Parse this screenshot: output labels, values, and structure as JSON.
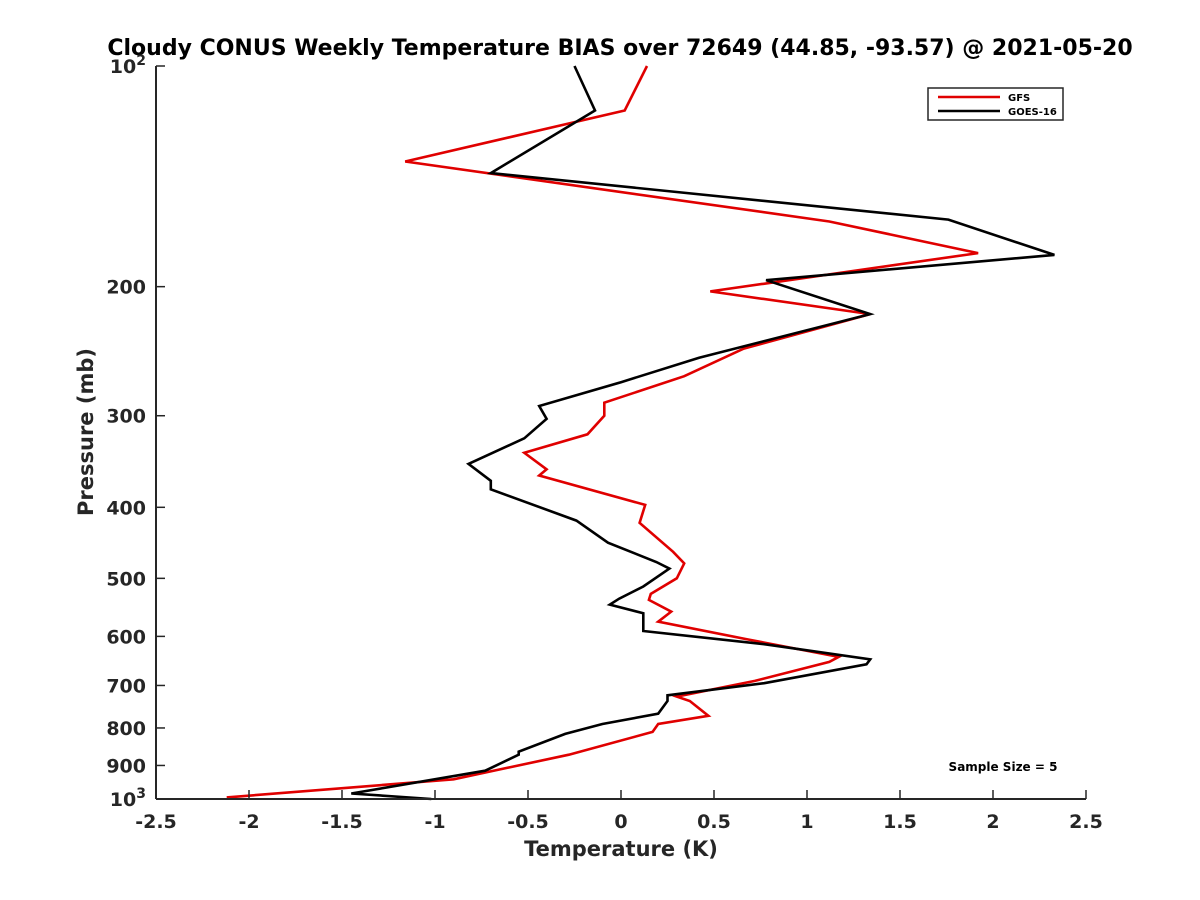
{
  "chart_data": {
    "type": "line",
    "title": "Cloudy CONUS Weekly Temperature BIAS over 72649 (44.85, -93.57) @ 2021-05-20",
    "xlabel": "Temperature (K)",
    "ylabel": "Pressure (mb)",
    "xlim": [
      -2.5,
      2.5
    ],
    "ylim": [
      100,
      1000
    ],
    "y_scale": "log",
    "y_direction": "reversed",
    "x_ticks": [
      "-2.5",
      "-2",
      "-1.5",
      "-1",
      "-0.5",
      "0",
      "0.5",
      "1",
      "1.5",
      "2",
      "2.5"
    ],
    "x_tick_values": [
      -2.5,
      -2,
      -1.5,
      -1,
      -0.5,
      0,
      0.5,
      1,
      1.5,
      2,
      2.5
    ],
    "y_ticks": [
      {
        "value": 100,
        "base": "10",
        "exp": "2"
      },
      {
        "value": 200,
        "label": "200"
      },
      {
        "value": 300,
        "label": "300"
      },
      {
        "value": 400,
        "label": "400"
      },
      {
        "value": 500,
        "label": "500"
      },
      {
        "value": 600,
        "label": "600"
      },
      {
        "value": 700,
        "label": "700"
      },
      {
        "value": 800,
        "label": "800"
      },
      {
        "value": 900,
        "label": "900"
      },
      {
        "value": 1000,
        "base": "10",
        "exp": "3"
      }
    ],
    "grid": false,
    "legend_position": "top-right",
    "annotation": "Sample Size = 5",
    "series": [
      {
        "name": "GFS",
        "color": "#e00000",
        "points": [
          [
            0.14,
            100
          ],
          [
            0.02,
            115
          ],
          [
            -1.16,
            135
          ],
          [
            1.12,
            163
          ],
          [
            1.92,
            180
          ],
          [
            0.48,
            203
          ],
          [
            1.34,
            218
          ],
          [
            0.66,
            243
          ],
          [
            0.34,
            265
          ],
          [
            -0.09,
            288
          ],
          [
            -0.09,
            300
          ],
          [
            -0.18,
            318
          ],
          [
            -0.52,
            337
          ],
          [
            -0.4,
            355
          ],
          [
            -0.44,
            362
          ],
          [
            0.13,
            397
          ],
          [
            0.1,
            420
          ],
          [
            0.28,
            460
          ],
          [
            0.34,
            477
          ],
          [
            0.3,
            500
          ],
          [
            0.16,
            525
          ],
          [
            0.15,
            535
          ],
          [
            0.27,
            555
          ],
          [
            0.2,
            573
          ],
          [
            0.67,
            605
          ],
          [
            1.17,
            640
          ],
          [
            1.12,
            650
          ],
          [
            0.72,
            690
          ],
          [
            0.3,
            725
          ],
          [
            0.37,
            735
          ],
          [
            0.47,
            770
          ],
          [
            0.2,
            790
          ],
          [
            0.17,
            810
          ],
          [
            -0.28,
            870
          ],
          [
            -0.9,
            940
          ],
          [
            -2.12,
            995
          ]
        ]
      },
      {
        "name": "GOES-16",
        "color": "#000000",
        "points": [
          [
            -0.25,
            100
          ],
          [
            -0.14,
            115
          ],
          [
            -0.7,
            140
          ],
          [
            1.76,
            162
          ],
          [
            2.33,
            181
          ],
          [
            0.78,
            196
          ],
          [
            1.34,
            218
          ],
          [
            0.42,
            250
          ],
          [
            0.0,
            270
          ],
          [
            -0.44,
            291
          ],
          [
            -0.4,
            303
          ],
          [
            -0.52,
            322
          ],
          [
            -0.82,
            349
          ],
          [
            -0.7,
            368
          ],
          [
            -0.7,
            378
          ],
          [
            -0.24,
            417
          ],
          [
            -0.07,
            447
          ],
          [
            0.19,
            475
          ],
          [
            0.26,
            485
          ],
          [
            0.12,
            513
          ],
          [
            -0.01,
            533
          ],
          [
            -0.06,
            543
          ],
          [
            0.12,
            558
          ],
          [
            0.12,
            590
          ],
          [
            0.77,
            615
          ],
          [
            1.34,
            645
          ],
          [
            1.32,
            655
          ],
          [
            0.77,
            695
          ],
          [
            0.25,
            722
          ],
          [
            0.25,
            735
          ],
          [
            0.2,
            765
          ],
          [
            -0.1,
            790
          ],
          [
            -0.3,
            815
          ],
          [
            -0.55,
            862
          ],
          [
            -0.55,
            870
          ],
          [
            -0.73,
            915
          ],
          [
            -1.45,
            983
          ],
          [
            -1.02,
            1000
          ]
        ]
      }
    ]
  }
}
